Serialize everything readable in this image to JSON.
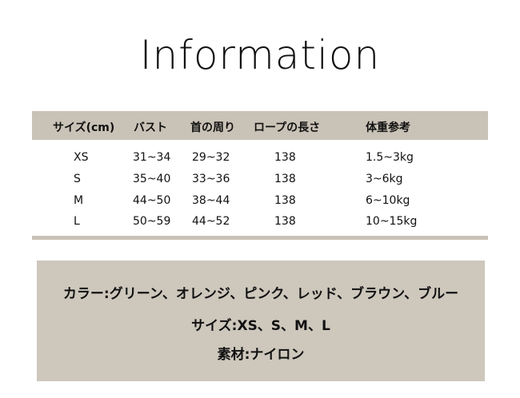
{
  "title": "Information",
  "table": {
    "headers": [
      "サイズ(cm)",
      "バスト",
      "首の周り",
      "ロープの長さ",
      "体重参考"
    ],
    "rows": [
      [
        "XS",
        "31~34",
        "29~32",
        "138",
        "1.5~3kg"
      ],
      [
        "S",
        "35~40",
        "33~36",
        "138",
        "3~6kg"
      ],
      [
        "M",
        "44~50",
        "38~44",
        "138",
        "6~10kg"
      ],
      [
        "L",
        "50~59",
        "44~52",
        "138",
        "10~15kg"
      ]
    ]
  },
  "info": {
    "color": "カラー:グリーン、オレンジ、ピンク、レッド、ブラウン、ブルー",
    "size": "サイズ:XS、S、M、L",
    "material": "素材:ナイロン"
  },
  "colors": {
    "header_bar": "#c9c2b6",
    "info_box": "#cdc7bc"
  }
}
